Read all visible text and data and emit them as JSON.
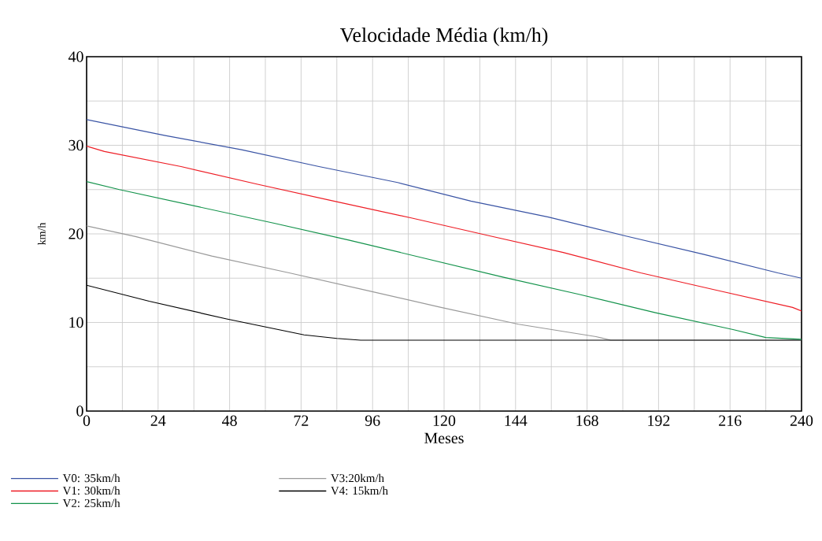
{
  "chart_data": {
    "type": "line",
    "title": "Velocidade Média (km/h)",
    "xlabel": "Meses",
    "ylabel": "km/h",
    "xlim": [
      0,
      240
    ],
    "xticks": [
      0,
      24,
      48,
      72,
      96,
      120,
      144,
      168,
      192,
      216,
      240
    ],
    "ylim": [
      0,
      40
    ],
    "yticks": [
      0,
      10,
      20,
      30,
      40
    ],
    "grid": true,
    "legend": "bottom",
    "series": [
      {
        "name": "V0: 35km/h",
        "color": "#3953a4",
        "x": [
          0,
          26.4,
          52,
          78,
          104.4,
          129,
          155,
          180.5,
          207,
          232,
          240
        ],
        "values": [
          32.9,
          31.1,
          29.5,
          27.6,
          25.8,
          23.7,
          21.9,
          19.8,
          17.7,
          15.6,
          15.0
        ]
      },
      {
        "name": "V1: 30km/h",
        "color": "#ee1c24",
        "x": [
          0,
          6,
          31.7,
          57.4,
          83,
          109,
          135,
          160,
          186,
          212,
          237,
          240
        ],
        "values": [
          29.9,
          29.3,
          27.6,
          25.6,
          23.7,
          21.8,
          19.8,
          17.9,
          15.6,
          13.6,
          11.7,
          11.3
        ]
      },
      {
        "name": "V2: 25km/h",
        "color": "#12924a",
        "x": [
          0,
          11,
          37,
          63,
          88,
          114,
          140,
          165,
          191,
          217,
          228,
          240
        ],
        "values": [
          25.9,
          25.0,
          23.1,
          21.2,
          19.3,
          17.2,
          15.1,
          13.2,
          11.1,
          9.2,
          8.3,
          8.1
        ]
      },
      {
        "name": "V3:20km/h",
        "color": "#999999",
        "x": [
          0,
          16.4,
          42,
          68,
          93,
          119,
          145,
          171,
          176,
          240
        ],
        "values": [
          20.9,
          19.7,
          17.5,
          15.6,
          13.7,
          11.7,
          9.8,
          8.4,
          8.0,
          8.0
        ]
      },
      {
        "name": "V4: 15km/h",
        "color": "#000000",
        "x": [
          0,
          21,
          47,
          73,
          84,
          92,
          240
        ],
        "values": [
          14.2,
          12.4,
          10.4,
          8.6,
          8.2,
          8.0,
          8.0
        ]
      }
    ]
  }
}
